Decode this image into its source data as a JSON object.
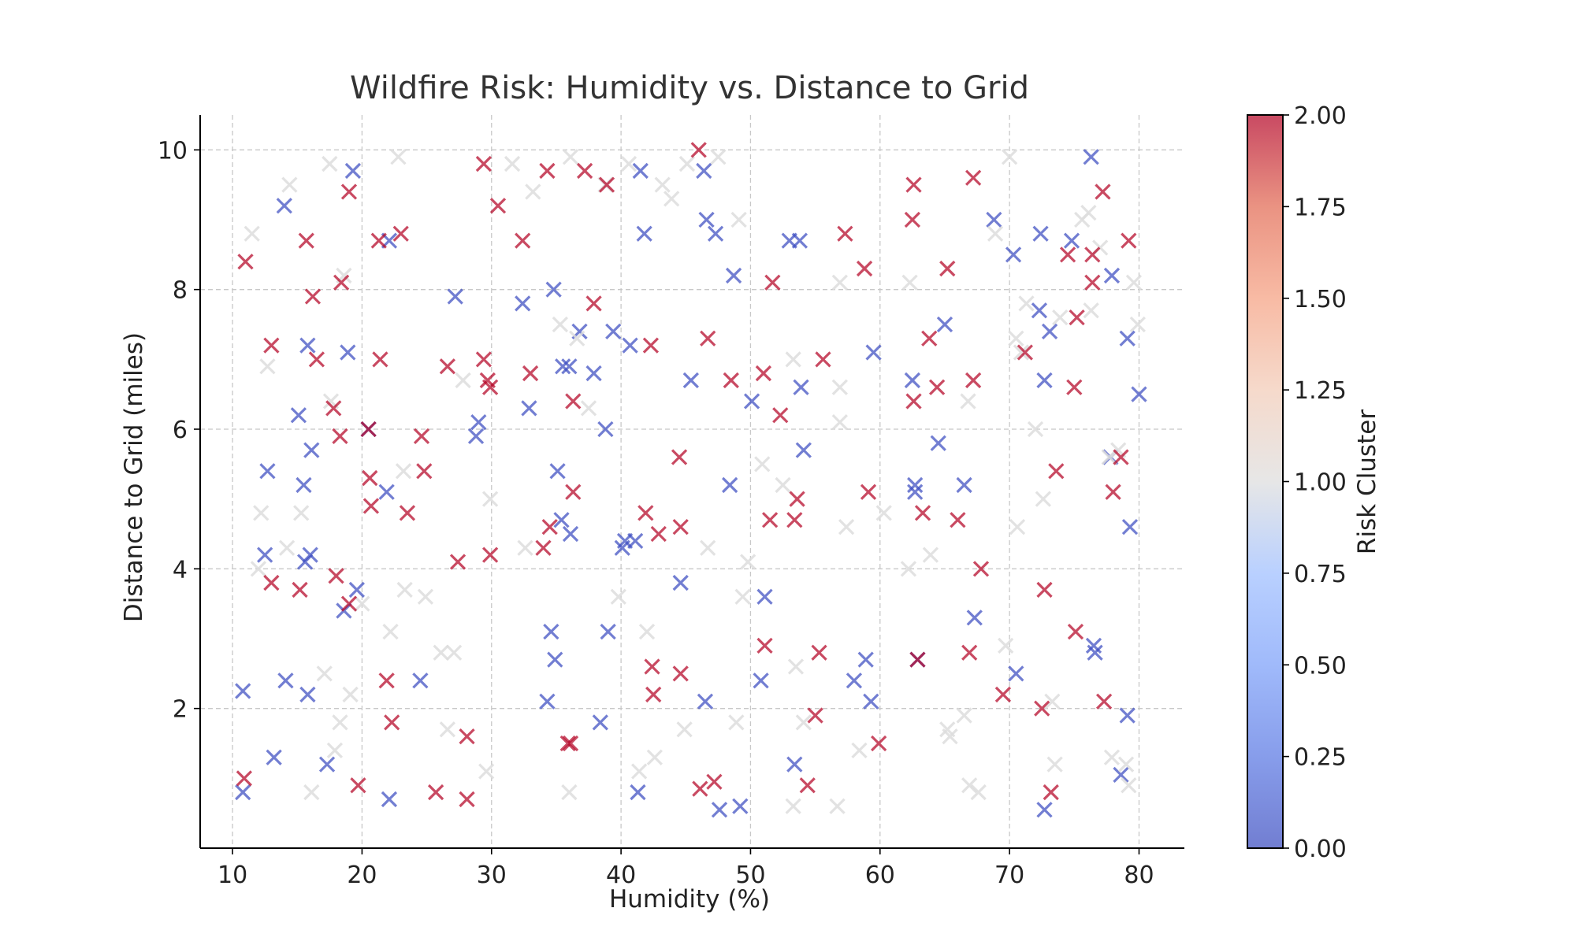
{
  "chart_data": {
    "type": "scatter",
    "title": "Wildfire Risk: Humidity vs. Distance to Grid",
    "xlabel": "Humidity (%)",
    "ylabel": "Distance to Grid (miles)",
    "xlim": [
      7.5,
      83.5
    ],
    "ylim": [
      0.0,
      10.5
    ],
    "xticks": [
      "10",
      "20",
      "30",
      "40",
      "50",
      "60",
      "70",
      "80"
    ],
    "yticks": [
      "2",
      "4",
      "6",
      "8",
      "10"
    ],
    "grid": true,
    "marker": "x",
    "colorbar": {
      "label": "Risk Cluster",
      "colormap": "coolwarm",
      "range": [
        0.0,
        2.0
      ],
      "ticks": [
        "0.00",
        "0.25",
        "0.50",
        "0.75",
        "1.00",
        "1.25",
        "1.50",
        "1.75",
        "2.00"
      ],
      "colors": {
        "low": "#3b4cc0",
        "mid": "#dddddd",
        "high": "#b40426"
      }
    },
    "series": [
      {
        "name": "Cluster 0",
        "cluster": 0,
        "points": [
          [
            10.8,
            2.25
          ],
          [
            10.8,
            0.8
          ],
          [
            12.5,
            4.2
          ],
          [
            12.7,
            5.4
          ],
          [
            13.2,
            1.3
          ],
          [
            14,
            9.2
          ],
          [
            14.1,
            2.4
          ],
          [
            15.1,
            6.2
          ],
          [
            15.5,
            5.2
          ],
          [
            15.6,
            4.1
          ],
          [
            15.8,
            7.2
          ],
          [
            15.8,
            2.2
          ],
          [
            16,
            4.2
          ],
          [
            16.1,
            5.7
          ],
          [
            17.3,
            1.2
          ],
          [
            18.6,
            3.4
          ],
          [
            18.9,
            7.1
          ],
          [
            19.3,
            9.7
          ],
          [
            19.6,
            3.7
          ],
          [
            20.5,
            6
          ],
          [
            21.9,
            5.1
          ],
          [
            22.1,
            0.7
          ],
          [
            22.1,
            8.7
          ],
          [
            24.5,
            2.4
          ],
          [
            27.2,
            7.9
          ],
          [
            28.8,
            5.9
          ],
          [
            29,
            6.1
          ],
          [
            32.4,
            7.8
          ],
          [
            32.9,
            6.3
          ],
          [
            34.3,
            2.1
          ],
          [
            34.6,
            3.1
          ],
          [
            34.8,
            8
          ],
          [
            34.9,
            2.7
          ],
          [
            35.1,
            5.4
          ],
          [
            35.4,
            4.7
          ],
          [
            35.5,
            6.9
          ],
          [
            36,
            6.9
          ],
          [
            36.1,
            4.5
          ],
          [
            36.8,
            7.4
          ],
          [
            37.9,
            6.8
          ],
          [
            38.4,
            1.8
          ],
          [
            38.8,
            6
          ],
          [
            39,
            3.1
          ],
          [
            39.4,
            7.4
          ],
          [
            40.1,
            4.3
          ],
          [
            40.3,
            4.4
          ],
          [
            40.7,
            7.2
          ],
          [
            41.1,
            4.4
          ],
          [
            41.3,
            0.8
          ],
          [
            41.5,
            9.7
          ],
          [
            41.8,
            8.8
          ],
          [
            44.6,
            3.8
          ],
          [
            45.4,
            6.7
          ],
          [
            46.4,
            9.7
          ],
          [
            46.5,
            2.1
          ],
          [
            46.6,
            9
          ],
          [
            47.3,
            8.8
          ],
          [
            47.6,
            0.55
          ],
          [
            48.4,
            5.2
          ],
          [
            48.7,
            8.2
          ],
          [
            49.2,
            0.6
          ],
          [
            50.1,
            6.4
          ],
          [
            50.8,
            2.4
          ],
          [
            51.1,
            3.6
          ],
          [
            53,
            8.7
          ],
          [
            53.4,
            1.2
          ],
          [
            53.8,
            8.7
          ],
          [
            53.9,
            6.6
          ],
          [
            54.1,
            5.7
          ],
          [
            58,
            2.4
          ],
          [
            58.9,
            2.7
          ],
          [
            59.3,
            2.1
          ],
          [
            59.5,
            7.1
          ],
          [
            62.5,
            6.7
          ],
          [
            62.7,
            5.2
          ],
          [
            62.7,
            5.1
          ],
          [
            62.9,
            2.7
          ],
          [
            64.5,
            5.8
          ],
          [
            65,
            7.5
          ],
          [
            66.5,
            5.2
          ],
          [
            67.3,
            3.3
          ],
          [
            68.8,
            9
          ],
          [
            70.3,
            8.5
          ],
          [
            70.5,
            2.5
          ],
          [
            72.3,
            7.7
          ],
          [
            72.4,
            8.8
          ],
          [
            72.7,
            6.7
          ],
          [
            72.7,
            0.55
          ],
          [
            73.1,
            7.4
          ],
          [
            74.8,
            8.7
          ],
          [
            76.3,
            9.9
          ],
          [
            76.5,
            2.9
          ],
          [
            76.6,
            2.8
          ],
          [
            77.8,
            5.6
          ],
          [
            77.9,
            8.2
          ],
          [
            78.6,
            1.05
          ],
          [
            79.1,
            7.3
          ],
          [
            79.1,
            1.9
          ],
          [
            79.3,
            4.6
          ],
          [
            80,
            6.5
          ]
        ]
      },
      {
        "name": "Cluster 1",
        "cluster": 1,
        "points": [
          [
            11.5,
            8.8
          ],
          [
            12,
            4
          ],
          [
            12.2,
            4.8
          ],
          [
            12.7,
            6.9
          ],
          [
            14.2,
            4.3
          ],
          [
            14.4,
            9.5
          ],
          [
            15.3,
            4.8
          ],
          [
            16.1,
            0.8
          ],
          [
            17.1,
            2.5
          ],
          [
            17.5,
            9.8
          ],
          [
            17.6,
            6.4
          ],
          [
            17.9,
            1.4
          ],
          [
            18.3,
            1.8
          ],
          [
            18.6,
            8.2
          ],
          [
            19.1,
            2.2
          ],
          [
            20,
            3.5
          ],
          [
            22.2,
            3.1
          ],
          [
            22.8,
            9.9
          ],
          [
            23.2,
            5.4
          ],
          [
            23.3,
            3.7
          ],
          [
            24.9,
            3.6
          ],
          [
            26.1,
            2.8
          ],
          [
            26.6,
            1.7
          ],
          [
            27.1,
            2.8
          ],
          [
            27.8,
            6.7
          ],
          [
            29.6,
            1.1
          ],
          [
            29.9,
            5
          ],
          [
            31.6,
            9.8
          ],
          [
            32.6,
            4.3
          ],
          [
            33.2,
            9.4
          ],
          [
            35.3,
            7.5
          ],
          [
            36,
            0.8
          ],
          [
            36.1,
            9.9
          ],
          [
            36.6,
            7.3
          ],
          [
            37.5,
            6.3
          ],
          [
            38.8,
            9.5
          ],
          [
            39.8,
            3.6
          ],
          [
            40.6,
            9.8
          ],
          [
            41.4,
            1.1
          ],
          [
            42,
            3.1
          ],
          [
            42.6,
            1.3
          ],
          [
            43.2,
            9.5
          ],
          [
            43.9,
            9.3
          ],
          [
            44.9,
            1.7
          ],
          [
            45.1,
            9.8
          ],
          [
            46.7,
            4.3
          ],
          [
            47.5,
            9.9
          ],
          [
            48.9,
            1.8
          ],
          [
            49.1,
            9
          ],
          [
            49.4,
            3.6
          ],
          [
            49.8,
            4.1
          ],
          [
            50.9,
            5.5
          ],
          [
            52.5,
            5.2
          ],
          [
            53.3,
            7
          ],
          [
            53.3,
            0.6
          ],
          [
            53.5,
            2.6
          ],
          [
            54.1,
            1.8
          ],
          [
            56.7,
            0.6
          ],
          [
            56.9,
            8.1
          ],
          [
            56.9,
            6.1
          ],
          [
            56.9,
            6.6
          ],
          [
            57.4,
            4.6
          ],
          [
            58.4,
            1.4
          ],
          [
            60.3,
            4.8
          ],
          [
            62.2,
            4
          ],
          [
            62.3,
            8.1
          ],
          [
            63.9,
            4.2
          ],
          [
            65.2,
            1.7
          ],
          [
            65.4,
            1.6
          ],
          [
            66.5,
            1.9
          ],
          [
            66.8,
            6.4
          ],
          [
            66.9,
            0.9
          ],
          [
            67.6,
            0.8
          ],
          [
            68.9,
            8.8
          ],
          [
            69.7,
            2.9
          ],
          [
            70,
            9.9
          ],
          [
            70.5,
            7.3
          ],
          [
            70.6,
            4.6
          ],
          [
            70.9,
            7.1
          ],
          [
            71.3,
            7.8
          ],
          [
            72,
            6
          ],
          [
            72.6,
            5
          ],
          [
            73.3,
            2.1
          ],
          [
            73.5,
            1.2
          ],
          [
            73.9,
            7.6
          ],
          [
            75.6,
            9
          ],
          [
            76.1,
            9.1
          ],
          [
            76.3,
            7.7
          ],
          [
            77,
            8.6
          ],
          [
            77.7,
            5.6
          ],
          [
            77.9,
            1.3
          ],
          [
            78.4,
            5.7
          ],
          [
            79,
            1.2
          ],
          [
            79.2,
            0.9
          ],
          [
            79.6,
            8.1
          ],
          [
            79.9,
            7.5
          ]
        ]
      },
      {
        "name": "Cluster 2",
        "cluster": 2,
        "points": [
          [
            10.9,
            1
          ],
          [
            11,
            8.4
          ],
          [
            13,
            3.8
          ],
          [
            13,
            7.2
          ],
          [
            15.2,
            3.7
          ],
          [
            15.7,
            8.7
          ],
          [
            16.2,
            7.9
          ],
          [
            16.5,
            7
          ],
          [
            17.8,
            6.3
          ],
          [
            18,
            3.9
          ],
          [
            18.3,
            5.9
          ],
          [
            18.4,
            8.1
          ],
          [
            19,
            9.4
          ],
          [
            19,
            3.5
          ],
          [
            19.7,
            0.9
          ],
          [
            20.5,
            6
          ],
          [
            20.6,
            5.3
          ],
          [
            20.7,
            4.9
          ],
          [
            21.3,
            8.7
          ],
          [
            21.4,
            7
          ],
          [
            21.9,
            2.4
          ],
          [
            22.3,
            1.8
          ],
          [
            23,
            8.8
          ],
          [
            23.5,
            4.8
          ],
          [
            24.6,
            5.9
          ],
          [
            24.8,
            5.4
          ],
          [
            25.7,
            0.8
          ],
          [
            26.6,
            6.9
          ],
          [
            27.4,
            4.1
          ],
          [
            28.1,
            1.6
          ],
          [
            28.1,
            0.7
          ],
          [
            29.4,
            9.8
          ],
          [
            29.4,
            7
          ],
          [
            29.7,
            6.7
          ],
          [
            29.9,
            6.6
          ],
          [
            29.9,
            4.2
          ],
          [
            30.5,
            9.2
          ],
          [
            32.4,
            8.7
          ],
          [
            33,
            6.8
          ],
          [
            34,
            4.3
          ],
          [
            34.3,
            9.7
          ],
          [
            34.5,
            4.6
          ],
          [
            35.9,
            1.5
          ],
          [
            36.1,
            1.5
          ],
          [
            36.3,
            6.4
          ],
          [
            36.3,
            5.1
          ],
          [
            37.2,
            9.7
          ],
          [
            37.9,
            7.8
          ],
          [
            38.9,
            9.5
          ],
          [
            41.9,
            4.8
          ],
          [
            42.3,
            7.2
          ],
          [
            42.4,
            2.6
          ],
          [
            42.5,
            2.2
          ],
          [
            42.9,
            4.5
          ],
          [
            44.5,
            5.6
          ],
          [
            44.6,
            4.6
          ],
          [
            44.6,
            2.5
          ],
          [
            46,
            10
          ],
          [
            46.1,
            0.85
          ],
          [
            46.7,
            7.3
          ],
          [
            47.2,
            0.95
          ],
          [
            48.5,
            6.7
          ],
          [
            51,
            6.8
          ],
          [
            51.1,
            2.9
          ],
          [
            51.5,
            4.7
          ],
          [
            51.7,
            8.1
          ],
          [
            52.3,
            6.2
          ],
          [
            53.4,
            4.7
          ],
          [
            53.6,
            5
          ],
          [
            54.4,
            0.9
          ],
          [
            55,
            1.9
          ],
          [
            55.3,
            2.8
          ],
          [
            55.6,
            7
          ],
          [
            57.3,
            8.8
          ],
          [
            58.8,
            8.3
          ],
          [
            59.1,
            5.1
          ],
          [
            59.9,
            1.5
          ],
          [
            62.5,
            9
          ],
          [
            62.6,
            9.5
          ],
          [
            62.6,
            6.4
          ],
          [
            62.9,
            2.7
          ],
          [
            63.3,
            4.8
          ],
          [
            63.8,
            7.3
          ],
          [
            64.4,
            6.6
          ],
          [
            65.2,
            8.3
          ],
          [
            66,
            4.7
          ],
          [
            66.9,
            2.8
          ],
          [
            67.2,
            9.6
          ],
          [
            67.2,
            6.7
          ],
          [
            67.8,
            4
          ],
          [
            69.5,
            2.2
          ],
          [
            71.2,
            7.1
          ],
          [
            72.5,
            2
          ],
          [
            72.7,
            3.7
          ],
          [
            73.2,
            0.8
          ],
          [
            73.6,
            5.4
          ],
          [
            74.5,
            8.5
          ],
          [
            75,
            6.6
          ],
          [
            75.2,
            7.6
          ],
          [
            75.1,
            3.1
          ],
          [
            76.4,
            8.5
          ],
          [
            76.4,
            8.1
          ],
          [
            77.2,
            9.4
          ],
          [
            77.3,
            2.1
          ],
          [
            78,
            5.1
          ],
          [
            78.6,
            5.6
          ],
          [
            79.2,
            8.7
          ]
        ]
      }
    ]
  }
}
